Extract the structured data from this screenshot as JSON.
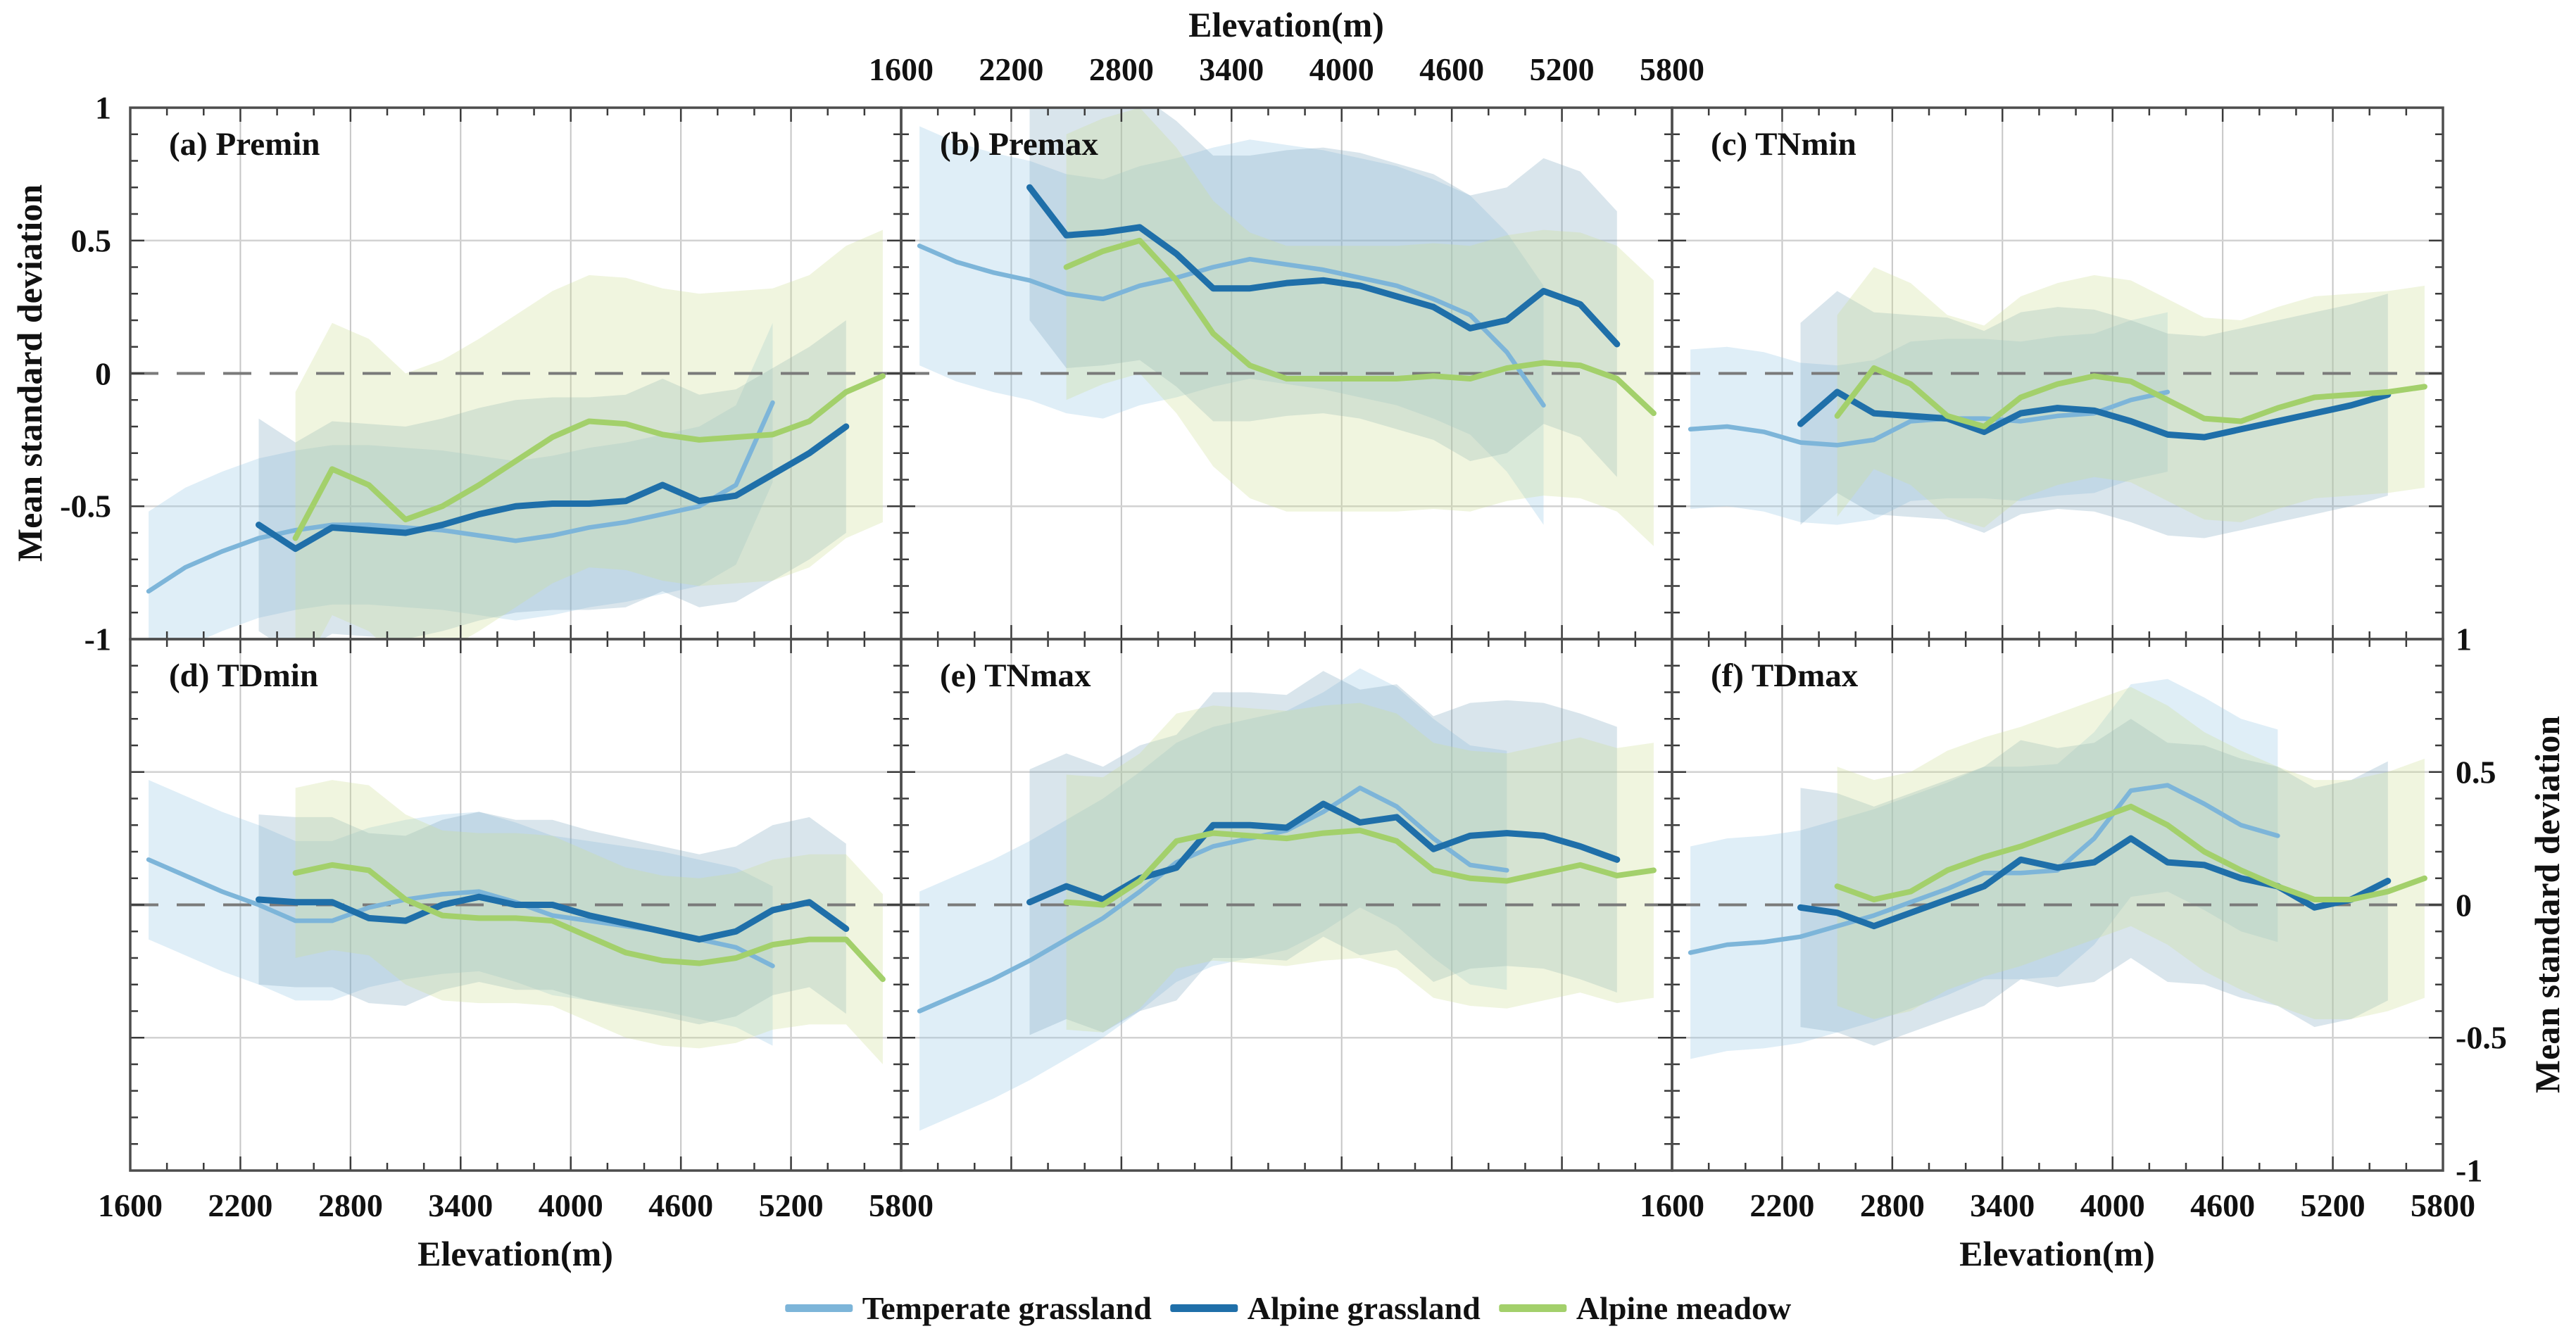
{
  "figure": {
    "top_axis_title": "Elevation(m)",
    "bottom_axis_title_left": "Elevation(m)",
    "bottom_axis_title_right": "Elevation(m)",
    "left_axis_title": "Mean standard deviation",
    "right_axis_title": "Mean standard deviation",
    "x_tick_labels": [
      "1600",
      "2200",
      "2800",
      "3400",
      "4000",
      "4600",
      "5200",
      "5800"
    ],
    "y_tick_labels": [
      "1",
      "0.5",
      "0",
      "-0.5",
      "-1"
    ],
    "background_color": "#ffffff",
    "grid_color": "#c6c6c6",
    "zero_line_color": "#7a7a7a",
    "border_color": "#4d4d4d",
    "tick_color": "#3a3a3a"
  },
  "legend": {
    "items": [
      {
        "label": "Temperate grassland",
        "color": "#7db5d9"
      },
      {
        "label": "Alpine grassland",
        "color": "#1f6fa9"
      },
      {
        "label": "Alpine meadow",
        "color": "#a3d06b"
      }
    ]
  },
  "chart_data": {
    "type": "line",
    "xlim": [
      1600,
      5800
    ],
    "ylim": [
      -1,
      1
    ],
    "x_major_ticks": [
      1600,
      2200,
      2800,
      3400,
      4000,
      4600,
      5200,
      5800
    ],
    "x_minor_step": 200,
    "y_major_ticks": [
      1,
      0.5,
      0,
      -0.5,
      -1
    ],
    "y_minor_step": 0.1,
    "grid": "on",
    "zero_line": "dashed",
    "legend_position": "bottom-center",
    "series_styles": {
      "Temperate grassland": {
        "line_color": "#7db5d9",
        "line_width": 6.5,
        "band_color": "rgba(157,201,230,0.32)"
      },
      "Alpine grassland": {
        "line_color": "#1f6fa9",
        "line_width": 9,
        "band_color": "rgba(120,162,188,0.28)"
      },
      "Alpine meadow": {
        "line_color": "#a3d06b",
        "line_width": 8,
        "band_color": "rgba(204,222,150,0.30)"
      }
    },
    "panels": [
      {
        "id": "a",
        "label": "(a) Premin",
        "row": 0,
        "col": 0,
        "series": [
          {
            "name": "Temperate grassland",
            "band_halfwidth": 0.3,
            "x": [
              1700,
              1900,
              2100,
              2300,
              2500,
              2700,
              2900,
              3100,
              3300,
              3500,
              3700,
              3900,
              4100,
              4300,
              4500,
              4700,
              4900,
              5100
            ],
            "values": [
              -0.82,
              -0.73,
              -0.67,
              -0.62,
              -0.59,
              -0.57,
              -0.57,
              -0.58,
              -0.59,
              -0.61,
              -0.63,
              -0.61,
              -0.58,
              -0.56,
              -0.53,
              -0.5,
              -0.42,
              -0.11
            ]
          },
          {
            "name": "Alpine grassland",
            "band_halfwidth": 0.4,
            "x": [
              2300,
              2500,
              2700,
              2900,
              3100,
              3300,
              3500,
              3700,
              3900,
              4100,
              4300,
              4500,
              4700,
              4900,
              5100,
              5300,
              5500
            ],
            "values": [
              -0.57,
              -0.66,
              -0.58,
              -0.59,
              -0.6,
              -0.57,
              -0.53,
              -0.5,
              -0.49,
              -0.49,
              -0.48,
              -0.42,
              -0.48,
              -0.46,
              -0.38,
              -0.3,
              -0.2
            ]
          },
          {
            "name": "Alpine meadow",
            "band_halfwidth": 0.55,
            "x": [
              2500,
              2700,
              2900,
              3100,
              3300,
              3500,
              3700,
              3900,
              4100,
              4300,
              4500,
              4700,
              4900,
              5100,
              5300,
              5500,
              5700
            ],
            "values": [
              -0.62,
              -0.36,
              -0.42,
              -0.55,
              -0.5,
              -0.42,
              -0.33,
              -0.24,
              -0.18,
              -0.19,
              -0.23,
              -0.25,
              -0.24,
              -0.23,
              -0.18,
              -0.07,
              -0.01
            ]
          }
        ]
      },
      {
        "id": "b",
        "label": "(b) Premax",
        "row": 0,
        "col": 1,
        "series": [
          {
            "name": "Temperate grassland",
            "band_halfwidth": 0.45,
            "x": [
              1700,
              1900,
              2100,
              2300,
              2500,
              2700,
              2900,
              3100,
              3300,
              3500,
              3700,
              3900,
              4100,
              4300,
              4500,
              4700,
              4900,
              5100
            ],
            "values": [
              0.48,
              0.42,
              0.38,
              0.35,
              0.3,
              0.28,
              0.33,
              0.36,
              0.4,
              0.43,
              0.41,
              0.39,
              0.36,
              0.33,
              0.28,
              0.22,
              0.08,
              -0.12
            ]
          },
          {
            "name": "Alpine grassland",
            "band_halfwidth": 0.5,
            "x": [
              2300,
              2500,
              2700,
              2900,
              3100,
              3300,
              3500,
              3700,
              3900,
              4100,
              4300,
              4500,
              4700,
              4900,
              5100,
              5300,
              5500
            ],
            "values": [
              0.7,
              0.52,
              0.53,
              0.55,
              0.45,
              0.32,
              0.32,
              0.34,
              0.35,
              0.33,
              0.29,
              0.25,
              0.17,
              0.2,
              0.31,
              0.26,
              0.11
            ]
          },
          {
            "name": "Alpine meadow",
            "band_halfwidth": 0.5,
            "x": [
              2500,
              2700,
              2900,
              3100,
              3300,
              3500,
              3700,
              3900,
              4100,
              4300,
              4500,
              4700,
              4900,
              5100,
              5300,
              5500,
              5700
            ],
            "values": [
              0.4,
              0.46,
              0.5,
              0.35,
              0.15,
              0.03,
              -0.02,
              -0.02,
              -0.02,
              -0.02,
              -0.01,
              -0.02,
              0.02,
              0.04,
              0.03,
              -0.02,
              -0.15
            ]
          }
        ]
      },
      {
        "id": "c",
        "label": "(c) TNmin",
        "row": 0,
        "col": 2,
        "series": [
          {
            "name": "Temperate grassland",
            "band_halfwidth": 0.3,
            "x": [
              1700,
              1900,
              2100,
              2300,
              2500,
              2700,
              2900,
              3100,
              3300,
              3500,
              3700,
              3900,
              4100,
              4300
            ],
            "values": [
              -0.21,
              -0.2,
              -0.22,
              -0.26,
              -0.27,
              -0.25,
              -0.18,
              -0.17,
              -0.17,
              -0.18,
              -0.16,
              -0.15,
              -0.1,
              -0.07
            ]
          },
          {
            "name": "Alpine grassland",
            "band_halfwidth": 0.38,
            "x": [
              2300,
              2500,
              2700,
              2900,
              3100,
              3300,
              3500,
              3700,
              3900,
              4100,
              4300,
              4500,
              4700,
              4900,
              5100,
              5300,
              5500
            ],
            "values": [
              -0.19,
              -0.07,
              -0.15,
              -0.16,
              -0.17,
              -0.22,
              -0.15,
              -0.13,
              -0.14,
              -0.18,
              -0.23,
              -0.24,
              -0.21,
              -0.18,
              -0.15,
              -0.12,
              -0.08
            ]
          },
          {
            "name": "Alpine meadow",
            "band_halfwidth": 0.38,
            "x": [
              2500,
              2700,
              2900,
              3100,
              3300,
              3500,
              3700,
              3900,
              4100,
              4300,
              4500,
              4700,
              4900,
              5100,
              5300,
              5500,
              5700
            ],
            "values": [
              -0.16,
              0.02,
              -0.04,
              -0.16,
              -0.2,
              -0.09,
              -0.04,
              -0.01,
              -0.03,
              -0.1,
              -0.17,
              -0.18,
              -0.13,
              -0.09,
              -0.08,
              -0.07,
              -0.05
            ]
          }
        ]
      },
      {
        "id": "d",
        "label": "(d) TDmin",
        "row": 1,
        "col": 0,
        "series": [
          {
            "name": "Temperate grassland",
            "band_halfwidth": 0.3,
            "x": [
              1700,
              1900,
              2100,
              2300,
              2500,
              2700,
              2900,
              3100,
              3300,
              3500,
              3700,
              3900,
              4100,
              4300,
              4500,
              4700,
              4900,
              5100
            ],
            "values": [
              0.17,
              0.11,
              0.05,
              0.0,
              -0.06,
              -0.06,
              -0.01,
              0.02,
              0.04,
              0.05,
              0.01,
              -0.04,
              -0.06,
              -0.08,
              -0.1,
              -0.13,
              -0.16,
              -0.23
            ]
          },
          {
            "name": "Alpine grassland",
            "band_halfwidth": 0.32,
            "x": [
              2300,
              2500,
              2700,
              2900,
              3100,
              3300,
              3500,
              3700,
              3900,
              4100,
              4300,
              4500,
              4700,
              4900,
              5100,
              5300,
              5500
            ],
            "values": [
              0.02,
              0.01,
              0.01,
              -0.05,
              -0.06,
              0.0,
              0.03,
              0.0,
              0.0,
              -0.04,
              -0.07,
              -0.1,
              -0.13,
              -0.1,
              -0.02,
              0.01,
              -0.09
            ]
          },
          {
            "name": "Alpine meadow",
            "band_halfwidth": 0.32,
            "x": [
              2500,
              2700,
              2900,
              3100,
              3300,
              3500,
              3700,
              3900,
              4100,
              4300,
              4500,
              4700,
              4900,
              5100,
              5300,
              5500,
              5700
            ],
            "values": [
              0.12,
              0.15,
              0.13,
              0.02,
              -0.04,
              -0.05,
              -0.05,
              -0.06,
              -0.12,
              -0.18,
              -0.21,
              -0.22,
              -0.2,
              -0.15,
              -0.13,
              -0.13,
              -0.28
            ]
          }
        ]
      },
      {
        "id": "e",
        "label": "(e) TNmax",
        "row": 1,
        "col": 1,
        "series": [
          {
            "name": "Temperate grassland",
            "band_halfwidth": 0.45,
            "x": [
              1700,
              1900,
              2100,
              2300,
              2500,
              2700,
              2900,
              3100,
              3300,
              3500,
              3700,
              3900,
              4100,
              4300,
              4500,
              4700,
              4900
            ],
            "values": [
              -0.4,
              -0.34,
              -0.28,
              -0.21,
              -0.13,
              -0.05,
              0.05,
              0.16,
              0.22,
              0.25,
              0.28,
              0.35,
              0.44,
              0.37,
              0.25,
              0.15,
              0.13
            ]
          },
          {
            "name": "Alpine grassland",
            "band_halfwidth": 0.5,
            "x": [
              2300,
              2500,
              2700,
              2900,
              3100,
              3300,
              3500,
              3700,
              3900,
              4100,
              4300,
              4500,
              4700,
              4900,
              5100,
              5300,
              5500
            ],
            "values": [
              0.01,
              0.07,
              0.02,
              0.1,
              0.14,
              0.3,
              0.3,
              0.29,
              0.38,
              0.31,
              0.33,
              0.21,
              0.26,
              0.27,
              0.26,
              0.22,
              0.17
            ]
          },
          {
            "name": "Alpine meadow",
            "band_halfwidth": 0.48,
            "x": [
              2500,
              2700,
              2900,
              3100,
              3300,
              3500,
              3700,
              3900,
              4100,
              4300,
              4500,
              4700,
              4900,
              5100,
              5300,
              5500,
              5700
            ],
            "values": [
              0.01,
              0.0,
              0.09,
              0.24,
              0.27,
              0.26,
              0.25,
              0.27,
              0.28,
              0.24,
              0.13,
              0.1,
              0.09,
              0.12,
              0.15,
              0.11,
              0.13
            ]
          }
        ]
      },
      {
        "id": "f",
        "label": "(f) TDmax",
        "row": 1,
        "col": 2,
        "series": [
          {
            "name": "Temperate grassland",
            "band_halfwidth": 0.4,
            "x": [
              1700,
              1900,
              2100,
              2300,
              2500,
              2700,
              2900,
              3100,
              3300,
              3500,
              3700,
              3900,
              4100,
              4300,
              4500,
              4700,
              4900
            ],
            "values": [
              -0.18,
              -0.15,
              -0.14,
              -0.12,
              -0.08,
              -0.04,
              0.01,
              0.06,
              0.12,
              0.12,
              0.13,
              0.25,
              0.43,
              0.45,
              0.38,
              0.3,
              0.26
            ]
          },
          {
            "name": "Alpine grassland",
            "band_halfwidth": 0.45,
            "x": [
              2300,
              2500,
              2700,
              2900,
              3100,
              3300,
              3500,
              3700,
              3900,
              4100,
              4300,
              4500,
              4700,
              4900,
              5100,
              5300,
              5500
            ],
            "values": [
              -0.01,
              -0.03,
              -0.08,
              -0.03,
              0.02,
              0.07,
              0.17,
              0.14,
              0.16,
              0.25,
              0.16,
              0.15,
              0.1,
              0.07,
              -0.01,
              0.02,
              0.09
            ]
          },
          {
            "name": "Alpine meadow",
            "band_halfwidth": 0.45,
            "x": [
              2500,
              2700,
              2900,
              3100,
              3300,
              3500,
              3700,
              3900,
              4100,
              4300,
              4500,
              4700,
              4900,
              5100,
              5300,
              5500,
              5700
            ],
            "values": [
              0.07,
              0.02,
              0.05,
              0.13,
              0.18,
              0.22,
              0.27,
              0.32,
              0.37,
              0.3,
              0.2,
              0.13,
              0.07,
              0.02,
              0.02,
              0.05,
              0.1
            ]
          }
        ]
      }
    ]
  }
}
